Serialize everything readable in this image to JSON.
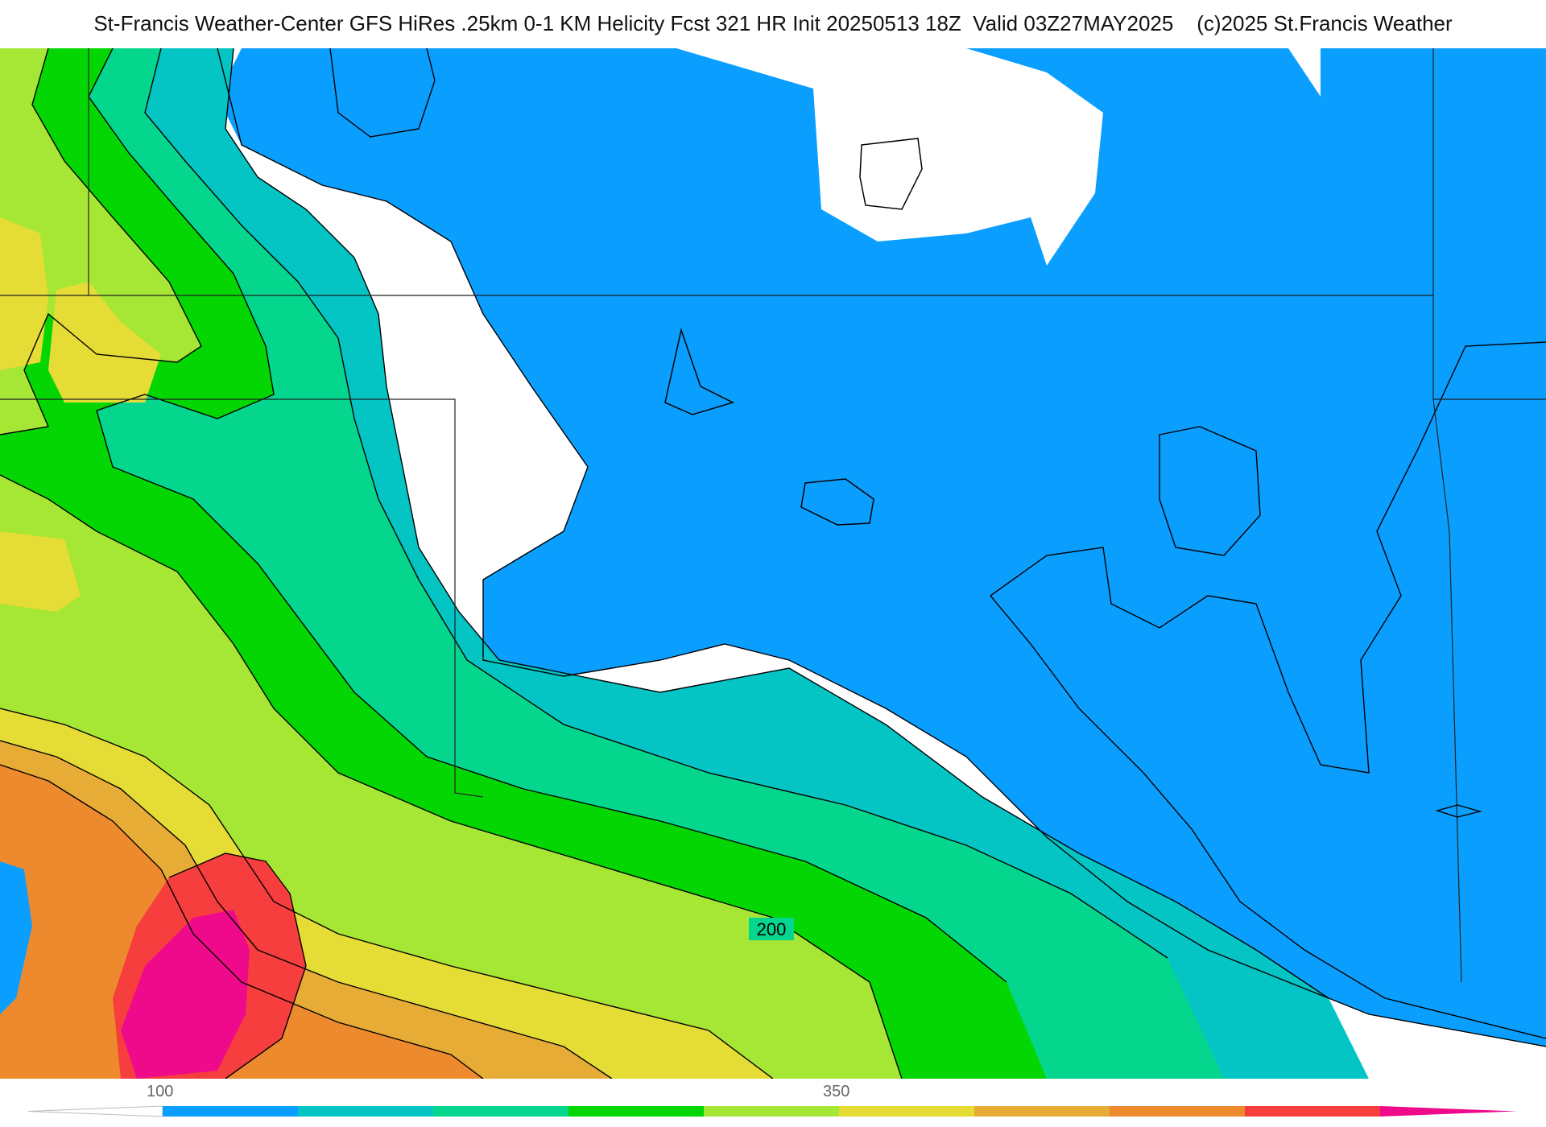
{
  "header": {
    "title": "St-Francis Weather-Center GFS HiRes .25km 0-1 KM Helicity Fcst 321 HR Init 20250513 18Z  Valid 03Z27MAY2025    (c)2025 St.Francis Weather"
  },
  "map": {
    "contour_label": "200"
  },
  "legend": {
    "tick_labels": [
      "100",
      "350"
    ],
    "colors": [
      "#ffffff",
      "#0a9eff",
      "#04c4c4",
      "#04d68e",
      "#04d604",
      "#a6e634",
      "#e6dc36",
      "#e6ac36",
      "#ee8a2e",
      "#f63e3e",
      "#ee0a8a"
    ]
  }
}
